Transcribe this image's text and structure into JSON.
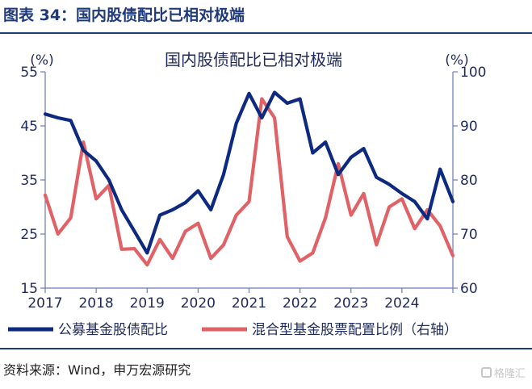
{
  "figure": {
    "title": "图表 34：国内股债配比已相对极端",
    "source": "资料来源：Wind，申万宏源研究",
    "watermark": "格隆汇"
  },
  "colors": {
    "title": "#1f3a7a",
    "series_left": "#0d2a80",
    "series_right": "#e06266",
    "axis": "#6a7ab0"
  },
  "chart_data": {
    "type": "line",
    "title": "国内股债配比已相对极端",
    "left_unit": "(%)",
    "right_unit": "(%)",
    "x_ticks": [
      "2017",
      "2018",
      "2019",
      "2020",
      "2021",
      "2022",
      "2023",
      "2024"
    ],
    "x_range": [
      2017.0,
      2025.0
    ],
    "ylim_left": [
      15,
      55
    ],
    "yticks_left": [
      15,
      25,
      35,
      45,
      55
    ],
    "ylim_right": [
      60,
      100
    ],
    "yticks_right": [
      60,
      70,
      80,
      90,
      100
    ],
    "grid": false,
    "legend_position": "bottom",
    "series": [
      {
        "name": "公募基金股债配比",
        "axis": "left",
        "x": [
          2017.0,
          2017.25,
          2017.5,
          2017.75,
          2018.0,
          2018.25,
          2018.5,
          2018.75,
          2019.0,
          2019.25,
          2019.5,
          2019.75,
          2020.0,
          2020.25,
          2020.5,
          2020.75,
          2021.0,
          2021.25,
          2021.5,
          2021.75,
          2022.0,
          2022.25,
          2022.5,
          2022.75,
          2023.0,
          2023.25,
          2023.5,
          2023.75,
          2024.0,
          2024.25,
          2024.5,
          2024.75,
          2025.0
        ],
        "values": [
          47.2,
          46.5,
          46.0,
          40.5,
          38.5,
          35.0,
          29.5,
          25.5,
          21.5,
          28.5,
          29.5,
          30.8,
          33.0,
          29.5,
          36.0,
          45.5,
          51.0,
          46.5,
          51.2,
          49.2,
          50.0,
          40.0,
          42.0,
          36.0,
          39.2,
          40.8,
          35.5,
          34.2,
          32.5,
          31.0,
          27.8,
          37.0,
          31.0
        ]
      },
      {
        "name": "混合型基金股票配置比例（右轴）",
        "axis": "right",
        "x": [
          2017.0,
          2017.25,
          2017.5,
          2017.75,
          2018.0,
          2018.25,
          2018.5,
          2018.75,
          2019.0,
          2019.25,
          2019.5,
          2019.75,
          2020.0,
          2020.25,
          2020.5,
          2020.75,
          2021.0,
          2021.25,
          2021.5,
          2021.75,
          2022.0,
          2022.25,
          2022.5,
          2022.75,
          2023.0,
          2023.25,
          2023.5,
          2023.75,
          2024.0,
          2024.25,
          2024.5,
          2024.75,
          2025.0
        ],
        "values": [
          77.2,
          70.0,
          73.0,
          87.0,
          76.5,
          79.0,
          67.2,
          67.3,
          64.3,
          69.0,
          65.5,
          70.5,
          72.0,
          65.5,
          68.0,
          73.5,
          76.0,
          95.0,
          91.5,
          69.5,
          65.0,
          66.5,
          73.0,
          83.0,
          73.5,
          77.5,
          68.0,
          75.0,
          76.5,
          71.0,
          74.5,
          71.5,
          66.0
        ]
      }
    ]
  }
}
